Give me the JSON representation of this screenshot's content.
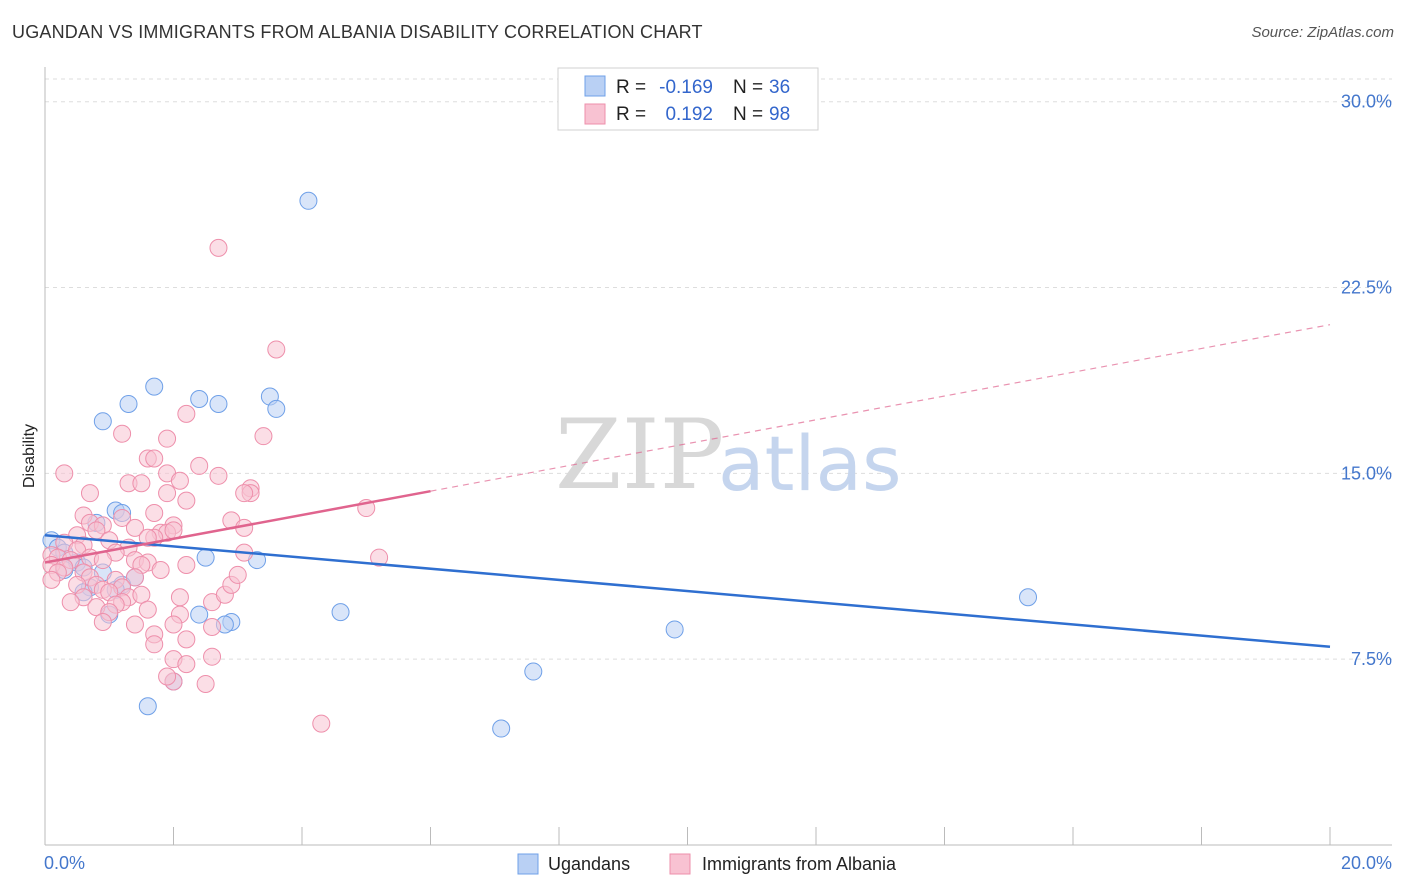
{
  "chart_data": {
    "type": "scatter",
    "title": "UGANDAN VS IMMIGRANTS FROM ALBANIA DISABILITY CORRELATION CHART",
    "source": "Source: ZipAtlas.com",
    "xlabel": "",
    "ylabel": "Disability",
    "xlim": [
      0,
      20
    ],
    "ylim": [
      0,
      31.4
    ],
    "x_tick_labels": [
      "0.0%",
      "20.0%"
    ],
    "y_ticks": [
      7.5,
      15.0,
      22.5,
      30.0
    ],
    "y_tick_labels": [
      "7.5%",
      "15.0%",
      "22.5%",
      "30.0%"
    ],
    "grid": true,
    "legend_position": "top-center",
    "watermark": {
      "zip": "ZIP",
      "atlas": "atlas"
    },
    "legend": {
      "r_label": "R =",
      "n_label": "N =",
      "entries": [
        {
          "r": "-0.169",
          "n": "36"
        },
        {
          "r": "0.192",
          "n": "98"
        }
      ]
    },
    "series": [
      {
        "name": "Ugandans",
        "color": "#6fa0e8",
        "fill": "#b9d0f4",
        "line_color": "#2f6fd0",
        "trend": {
          "x0": 0,
          "y0": 12.5,
          "x1": 20,
          "y1": 8.0,
          "solid_until": 20
        },
        "points": [
          [
            4.1,
            26.0
          ],
          [
            1.7,
            18.5
          ],
          [
            2.4,
            18.0
          ],
          [
            2.7,
            17.8
          ],
          [
            3.5,
            18.1
          ],
          [
            3.6,
            17.6
          ],
          [
            1.3,
            17.8
          ],
          [
            0.9,
            17.1
          ],
          [
            1.1,
            13.5
          ],
          [
            1.2,
            13.4
          ],
          [
            0.8,
            13.0
          ],
          [
            0.1,
            12.3
          ],
          [
            0.2,
            12.0
          ],
          [
            0.3,
            11.8
          ],
          [
            0.5,
            11.4
          ],
          [
            0.6,
            11.2
          ],
          [
            0.3,
            11.1
          ],
          [
            0.9,
            11.0
          ],
          [
            2.5,
            11.6
          ],
          [
            3.3,
            11.5
          ],
          [
            1.4,
            10.8
          ],
          [
            1.2,
            10.5
          ],
          [
            0.7,
            10.4
          ],
          [
            0.6,
            10.2
          ],
          [
            1.1,
            10.3
          ],
          [
            2.4,
            9.3
          ],
          [
            1.0,
            9.3
          ],
          [
            2.9,
            9.0
          ],
          [
            2.8,
            8.9
          ],
          [
            4.6,
            9.4
          ],
          [
            15.3,
            10.0
          ],
          [
            9.8,
            8.7
          ],
          [
            7.6,
            7.0
          ],
          [
            2.0,
            6.6
          ],
          [
            1.6,
            5.6
          ],
          [
            7.1,
            4.7
          ]
        ]
      },
      {
        "name": "Immigrants from Albania",
        "color": "#ee8fab",
        "fill": "#f8c2d2",
        "line_color": "#e0648e",
        "trend": {
          "x0": 0,
          "y0": 11.4,
          "x1": 20,
          "y1": 21.0,
          "solid_until": 6.0
        },
        "points": [
          [
            2.7,
            24.1
          ],
          [
            3.6,
            20.0
          ],
          [
            2.2,
            17.4
          ],
          [
            1.2,
            16.6
          ],
          [
            3.4,
            16.5
          ],
          [
            1.9,
            16.4
          ],
          [
            1.6,
            15.6
          ],
          [
            1.7,
            15.6
          ],
          [
            0.3,
            15.0
          ],
          [
            2.4,
            15.3
          ],
          [
            1.9,
            15.0
          ],
          [
            2.7,
            14.9
          ],
          [
            1.3,
            14.6
          ],
          [
            1.5,
            14.6
          ],
          [
            2.1,
            14.7
          ],
          [
            3.2,
            14.4
          ],
          [
            3.2,
            14.2
          ],
          [
            3.1,
            14.2
          ],
          [
            0.7,
            14.2
          ],
          [
            1.9,
            14.2
          ],
          [
            2.2,
            13.9
          ],
          [
            5.0,
            13.6
          ],
          [
            0.6,
            13.3
          ],
          [
            1.7,
            13.4
          ],
          [
            1.2,
            13.2
          ],
          [
            0.7,
            13.0
          ],
          [
            0.9,
            12.9
          ],
          [
            2.0,
            12.9
          ],
          [
            2.9,
            13.1
          ],
          [
            1.4,
            12.8
          ],
          [
            0.5,
            12.5
          ],
          [
            0.8,
            12.7
          ],
          [
            1.8,
            12.6
          ],
          [
            1.9,
            12.6
          ],
          [
            2.0,
            12.7
          ],
          [
            3.1,
            12.8
          ],
          [
            1.7,
            12.4
          ],
          [
            1.6,
            12.4
          ],
          [
            1.0,
            12.3
          ],
          [
            0.3,
            12.2
          ],
          [
            0.6,
            12.1
          ],
          [
            1.3,
            12.0
          ],
          [
            1.1,
            11.8
          ],
          [
            0.5,
            11.9
          ],
          [
            0.1,
            11.7
          ],
          [
            0.2,
            11.6
          ],
          [
            0.4,
            11.5
          ],
          [
            0.7,
            11.6
          ],
          [
            0.9,
            11.5
          ],
          [
            1.4,
            11.5
          ],
          [
            1.6,
            11.4
          ],
          [
            1.5,
            11.3
          ],
          [
            2.2,
            11.3
          ],
          [
            3.1,
            11.8
          ],
          [
            5.2,
            11.6
          ],
          [
            0.1,
            11.3
          ],
          [
            0.3,
            11.2
          ],
          [
            0.2,
            11.0
          ],
          [
            0.6,
            11.0
          ],
          [
            0.7,
            10.8
          ],
          [
            1.1,
            10.7
          ],
          [
            1.4,
            10.8
          ],
          [
            1.8,
            11.1
          ],
          [
            0.1,
            10.7
          ],
          [
            0.5,
            10.5
          ],
          [
            0.8,
            10.5
          ],
          [
            1.2,
            10.4
          ],
          [
            0.9,
            10.3
          ],
          [
            1.0,
            10.2
          ],
          [
            1.3,
            10.0
          ],
          [
            1.5,
            10.1
          ],
          [
            0.6,
            10.0
          ],
          [
            1.2,
            9.8
          ],
          [
            1.1,
            9.7
          ],
          [
            0.4,
            9.8
          ],
          [
            0.8,
            9.6
          ],
          [
            1.6,
            9.5
          ],
          [
            1.0,
            9.4
          ],
          [
            2.1,
            9.3
          ],
          [
            0.9,
            9.0
          ],
          [
            1.4,
            8.9
          ],
          [
            2.0,
            8.9
          ],
          [
            2.6,
            8.8
          ],
          [
            2.6,
            9.8
          ],
          [
            2.1,
            10.0
          ],
          [
            1.7,
            8.5
          ],
          [
            2.2,
            8.3
          ],
          [
            1.7,
            8.1
          ],
          [
            2.8,
            10.1
          ],
          [
            2.6,
            7.6
          ],
          [
            2.0,
            7.5
          ],
          [
            2.2,
            7.3
          ],
          [
            2.0,
            6.6
          ],
          [
            2.5,
            6.5
          ],
          [
            4.3,
            4.9
          ],
          [
            1.9,
            6.8
          ],
          [
            2.9,
            10.5
          ],
          [
            3.0,
            10.9
          ]
        ]
      }
    ]
  }
}
